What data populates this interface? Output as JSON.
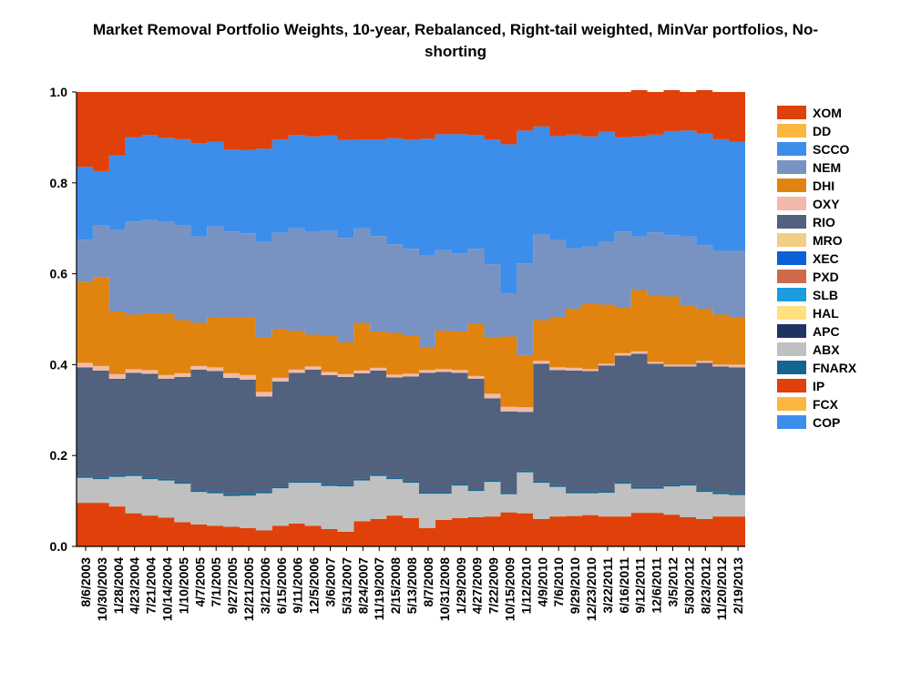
{
  "chart_data": {
    "type": "area",
    "stacked": true,
    "step": true,
    "title": "Market Removal Portfolio Weights, 10-year, Rebalanced, Right-tail weighted, MinVar portfolios, No-shorting",
    "title_lines": [
      "Market Removal Portfolio Weights, 10-year, Rebalanced, Right-tail weighted, MinVar portfolios, No-",
      "shorting"
    ],
    "xlabel": "",
    "ylabel": "",
    "ylim": [
      0.0,
      1.0
    ],
    "y_ticks": [
      "0.0",
      "0.2",
      "0.4",
      "0.6",
      "0.8",
      "1.0"
    ],
    "x_tick_labels": [
      "8/6/2003",
      "10/30/2003",
      "1/28/2004",
      "4/23/2004",
      "7/21/2004",
      "10/14/2004",
      "1/10/2005",
      "4/7/2005",
      "7/1/2005",
      "9/27/2005",
      "12/21/2005",
      "3/21/2006",
      "6/15/2006",
      "9/11/2006",
      "12/5/2006",
      "3/6/2007",
      "5/31/2007",
      "8/24/2007",
      "11/19/2007",
      "2/15/2008",
      "5/13/2008",
      "8/7/2008",
      "10/31/2008",
      "1/29/2009",
      "4/27/2009",
      "7/22/2009",
      "10/15/2009",
      "1/12/2010",
      "4/9/2010",
      "7/6/2010",
      "9/29/2010",
      "12/23/2010",
      "3/22/2011",
      "6/16/2011",
      "9/12/2011",
      "12/6/2011",
      "3/5/2012",
      "5/30/2012",
      "8/23/2012",
      "11/20/2012",
      "2/19/2013"
    ],
    "legend_position": "right",
    "legend": [
      {
        "name": "XOM",
        "color": "#E04009"
      },
      {
        "name": "DD",
        "color": "#FDB640"
      },
      {
        "name": "SCCO",
        "color": "#3D8DEB"
      },
      {
        "name": "NEM",
        "color": "#7893C2"
      },
      {
        "name": "DHI",
        "color": "#E0830F"
      },
      {
        "name": "OXY",
        "color": "#F1BAA8"
      },
      {
        "name": "RIO",
        "color": "#51617E"
      },
      {
        "name": "MRO",
        "color": "#F2CD85"
      },
      {
        "name": "XEC",
        "color": "#0A60D6"
      },
      {
        "name": "PXD",
        "color": "#CE694C"
      },
      {
        "name": "SLB",
        "color": "#1B9BE0"
      },
      {
        "name": "HAL",
        "color": "#FFE07F"
      },
      {
        "name": "APC",
        "color": "#1F3561"
      },
      {
        "name": "ABX",
        "color": "#C0C0C0"
      },
      {
        "name": "FNARX",
        "color": "#13658F"
      },
      {
        "name": "IP",
        "color": "#E04009"
      },
      {
        "name": "FCX",
        "color": "#FDB640"
      },
      {
        "name": "COP",
        "color": "#3D8DEB"
      }
    ],
    "series": [
      {
        "name": "IP",
        "color": "#E04009",
        "values": [
          0.096,
          0.096,
          0.088,
          0.073,
          0.068,
          0.063,
          0.053,
          0.048,
          0.045,
          0.043,
          0.04,
          0.035,
          0.045,
          0.05,
          0.045,
          0.038,
          0.032,
          0.055,
          0.06,
          0.068,
          0.062,
          0.04,
          0.058,
          0.062,
          0.064,
          0.066,
          0.075,
          0.073,
          0.06,
          0.066,
          0.067,
          0.069,
          0.066,
          0.066,
          0.074,
          0.074,
          0.07,
          0.064,
          0.06,
          0.066,
          0.066
        ]
      },
      {
        "name": "ABX",
        "color": "#C0C0C0",
        "values": [
          0.055,
          0.052,
          0.065,
          0.082,
          0.08,
          0.082,
          0.085,
          0.072,
          0.072,
          0.068,
          0.072,
          0.082,
          0.083,
          0.09,
          0.095,
          0.095,
          0.1,
          0.09,
          0.095,
          0.08,
          0.078,
          0.076,
          0.058,
          0.072,
          0.058,
          0.076,
          0.04,
          0.09,
          0.08,
          0.065,
          0.05,
          0.048,
          0.052,
          0.072,
          0.053,
          0.053,
          0.062,
          0.07,
          0.06,
          0.049,
          0.047
        ]
      },
      {
        "name": "FNARX",
        "color": "#13658F",
        "values": [
          0.004,
          0.004,
          0.004,
          0.004,
          0.004,
          0.004,
          0.004,
          0.004,
          0.004,
          0.004,
          0.004,
          0.004,
          0.004,
          0.004,
          0.004,
          0.004,
          0.004,
          0.004,
          0.004,
          0.004,
          0.004,
          0.004,
          0.004,
          0.004,
          0.004,
          0.004,
          0.004,
          0.004,
          0.004,
          0.004,
          0.004,
          0.004,
          0.004,
          0.004,
          0.004,
          0.004,
          0.004,
          0.004,
          0.004,
          0.004,
          0.004
        ]
      },
      {
        "name": "RIO",
        "color": "#51617E",
        "values": [
          0.239,
          0.235,
          0.212,
          0.223,
          0.228,
          0.22,
          0.231,
          0.265,
          0.265,
          0.256,
          0.251,
          0.209,
          0.231,
          0.238,
          0.245,
          0.24,
          0.237,
          0.232,
          0.228,
          0.22,
          0.23,
          0.262,
          0.264,
          0.244,
          0.243,
          0.18,
          0.178,
          0.129,
          0.258,
          0.253,
          0.266,
          0.265,
          0.276,
          0.278,
          0.293,
          0.271,
          0.26,
          0.258,
          0.28,
          0.277,
          0.277
        ]
      },
      {
        "name": "OXY",
        "color": "#F1BAA8",
        "values": [
          0.01,
          0.01,
          0.01,
          0.008,
          0.008,
          0.008,
          0.008,
          0.008,
          0.008,
          0.01,
          0.01,
          0.01,
          0.008,
          0.007,
          0.007,
          0.007,
          0.006,
          0.006,
          0.006,
          0.006,
          0.006,
          0.006,
          0.006,
          0.006,
          0.006,
          0.01,
          0.01,
          0.01,
          0.006,
          0.006,
          0.006,
          0.004,
          0.004,
          0.005,
          0.005,
          0.004,
          0.004,
          0.004,
          0.004,
          0.004,
          0.006
        ]
      },
      {
        "name": "DHI",
        "color": "#E0830F",
        "values": [
          0.178,
          0.196,
          0.138,
          0.12,
          0.125,
          0.135,
          0.117,
          0.095,
          0.11,
          0.124,
          0.128,
          0.12,
          0.107,
          0.085,
          0.07,
          0.08,
          0.07,
          0.105,
          0.08,
          0.092,
          0.085,
          0.05,
          0.085,
          0.085,
          0.115,
          0.125,
          0.155,
          0.115,
          0.09,
          0.11,
          0.13,
          0.144,
          0.13,
          0.1,
          0.135,
          0.145,
          0.15,
          0.13,
          0.115,
          0.11,
          0.105
        ]
      },
      {
        "name": "NEM",
        "color": "#7893C2",
        "values": [
          0.093,
          0.113,
          0.179,
          0.205,
          0.205,
          0.202,
          0.208,
          0.19,
          0.2,
          0.188,
          0.184,
          0.21,
          0.212,
          0.226,
          0.226,
          0.23,
          0.23,
          0.208,
          0.21,
          0.195,
          0.19,
          0.202,
          0.177,
          0.172,
          0.165,
          0.16,
          0.096,
          0.202,
          0.188,
          0.17,
          0.133,
          0.126,
          0.138,
          0.168,
          0.118,
          0.14,
          0.135,
          0.152,
          0.14,
          0.14,
          0.145
        ]
      },
      {
        "name": "COP",
        "color": "#3D8DEB",
        "values": [
          0.16,
          0.12,
          0.164,
          0.185,
          0.187,
          0.185,
          0.19,
          0.205,
          0.186,
          0.18,
          0.183,
          0.205,
          0.205,
          0.205,
          0.21,
          0.21,
          0.215,
          0.195,
          0.212,
          0.233,
          0.24,
          0.257,
          0.255,
          0.262,
          0.25,
          0.274,
          0.327,
          0.292,
          0.238,
          0.229,
          0.25,
          0.242,
          0.242,
          0.207,
          0.22,
          0.215,
          0.229,
          0.233,
          0.245,
          0.246,
          0.24
        ]
      },
      {
        "name": "XOM",
        "color": "#E04009",
        "values": [
          0.165,
          0.174,
          0.14,
          0.1,
          0.095,
          0.101,
          0.104,
          0.113,
          0.11,
          0.127,
          0.128,
          0.125,
          0.105,
          0.095,
          0.098,
          0.096,
          0.106,
          0.105,
          0.105,
          0.102,
          0.105,
          0.103,
          0.093,
          0.093,
          0.095,
          0.105,
          0.115,
          0.085,
          0.076,
          0.097,
          0.094,
          0.098,
          0.088,
          0.1,
          0.102,
          0.094,
          0.09,
          0.085,
          0.096,
          0.104,
          0.11
        ]
      }
    ]
  }
}
